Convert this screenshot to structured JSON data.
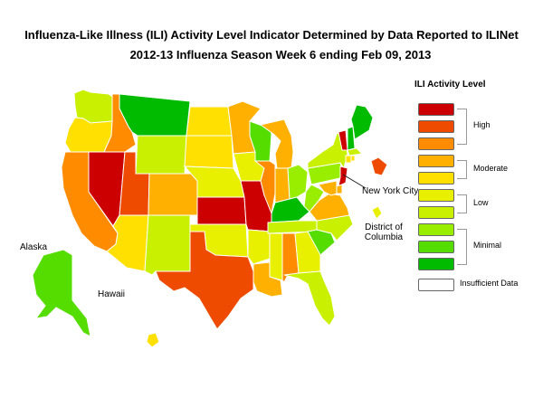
{
  "header": {
    "title_line1": "Influenza-Like Illness (ILI) Activity Level Indicator Determined by Data Reported to ILINet",
    "title_line2": "2012-13  Influenza Season Week  6 ending Feb 09, 2013"
  },
  "legend": {
    "title": "ILI Activity Level",
    "levels": [
      {
        "level": 10,
        "color": "#cc0000"
      },
      {
        "level": 9,
        "color": "#ee4b00"
      },
      {
        "level": 8,
        "color": "#ff8c00"
      },
      {
        "level": 7,
        "color": "#ffb000"
      },
      {
        "level": 6,
        "color": "#ffe000"
      },
      {
        "level": 5,
        "color": "#e8f000"
      },
      {
        "level": 4,
        "color": "#c8f000"
      },
      {
        "level": 3,
        "color": "#99ee00"
      },
      {
        "level": 2,
        "color": "#55dd00"
      },
      {
        "level": 1,
        "color": "#00bb00"
      },
      {
        "level": 0,
        "color": "#ffffff"
      }
    ],
    "groups": [
      {
        "label": "High",
        "levels": [
          10,
          9,
          8
        ]
      },
      {
        "label": "Moderate",
        "levels": [
          7,
          6
        ]
      },
      {
        "label": "Low",
        "levels": [
          5,
          4
        ]
      },
      {
        "label": "Minimal",
        "levels": [
          3,
          2,
          1
        ]
      },
      {
        "label": "Insufficient Data",
        "levels": [
          0
        ]
      }
    ]
  },
  "map_labels": {
    "alaska": "Alaska",
    "hawaii": "Hawaii",
    "nyc": "New York City",
    "dc_line1": "District of",
    "dc_line2": "Columbia"
  },
  "state_levels": {
    "WA": 4,
    "OR": 6,
    "CA": 8,
    "NV": 10,
    "ID": 8,
    "MT": 1,
    "WY": 4,
    "UT": 9,
    "AZ": 6,
    "CO": 7,
    "NM": 4,
    "ND": 6,
    "SD": 6,
    "NE": 5,
    "KS": 10,
    "OK": 5,
    "TX": 9,
    "MN": 7,
    "IA": 5,
    "MO": 10,
    "AR": 5,
    "LA": 7,
    "WI": 2,
    "IL": 8,
    "MI": 7,
    "IN": 7,
    "OH": 3,
    "KY": 1,
    "TN": 4,
    "MS": 5,
    "AL": 8,
    "GA": 5,
    "FL": 4,
    "SC": 2,
    "NC": 4,
    "VA": 7,
    "WV": 3,
    "PA": 3,
    "NY": 4,
    "VT": 10,
    "NH": 1,
    "ME": 1,
    "MA": 4,
    "CT": 6,
    "RI": 6,
    "NJ": 10,
    "DE": 7,
    "MD": 7,
    "AK": 2,
    "HI": 6,
    "NYC": 9,
    "DC": 5
  }
}
